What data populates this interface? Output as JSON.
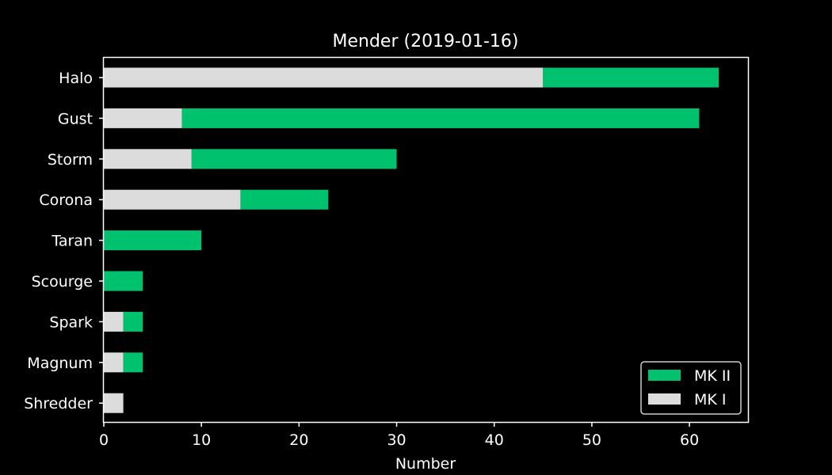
{
  "chart_data": {
    "type": "bar",
    "orientation": "horizontal",
    "stacked": true,
    "title": "Mender (2019-01-16)",
    "xlabel": "Number",
    "ylabel": "",
    "xlim": [
      0,
      66
    ],
    "xticks": [
      0,
      10,
      20,
      30,
      40,
      50,
      60
    ],
    "grid": false,
    "legend_position": "lower-right",
    "categories": [
      "Halo",
      "Gust",
      "Storm",
      "Corona",
      "Taran",
      "Scourge",
      "Spark",
      "Magnum",
      "Shredder"
    ],
    "series": [
      {
        "name": "MK I",
        "color": "#dcdcdc",
        "values": [
          45,
          8,
          9,
          14,
          0,
          0,
          2,
          2,
          2
        ]
      },
      {
        "name": "MK II",
        "color": "#00c16e",
        "values": [
          18,
          53,
          21,
          9,
          10,
          4,
          2,
          2,
          0
        ]
      }
    ],
    "legend_order": [
      "MK II",
      "MK I"
    ],
    "colors": {
      "background": "#000000",
      "axes": "#ffffff",
      "text": "#ffffff"
    }
  }
}
